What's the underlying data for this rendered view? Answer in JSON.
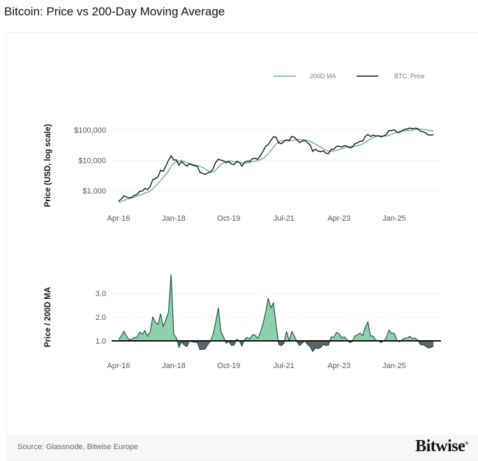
{
  "title": "Bitcoin: Price vs 200-Day Moving Average",
  "footer": {
    "source": "Source: Glassnode, Bitwise Europe",
    "logo": "Bitwise"
  },
  "colors": {
    "ma": "#6fb79a",
    "price": "#111111",
    "fill_above": "#8fd0ac",
    "fill_below": "#5f6468",
    "ratio_line": "#0f4a44"
  },
  "chart_data": [
    {
      "type": "line",
      "ylabel": "Price (USD, log scale)",
      "yscale": "log",
      "yticks": [
        1000,
        10000,
        100000
      ],
      "ytick_labels": [
        "$1,000",
        "$10,000",
        "$100,000"
      ],
      "xtick_labels": [
        "Apr-16",
        "Jan-18",
        "Oct-19",
        "Jul-21",
        "Apr-23",
        "Jan-25"
      ],
      "legend": {
        "placement": "top-right",
        "entries": [
          "200D MA",
          "BTC: Price"
        ]
      },
      "grid": "horizontal",
      "x": [
        "2016-04",
        "2016-05",
        "2016-06",
        "2016-07",
        "2016-08",
        "2016-09",
        "2016-10",
        "2016-11",
        "2016-12",
        "2017-01",
        "2017-02",
        "2017-03",
        "2017-04",
        "2017-05",
        "2017-06",
        "2017-07",
        "2017-08",
        "2017-09",
        "2017-10",
        "2017-11",
        "2017-12",
        "2018-01",
        "2018-02",
        "2018-03",
        "2018-04",
        "2018-05",
        "2018-06",
        "2018-07",
        "2018-08",
        "2018-09",
        "2018-10",
        "2018-11",
        "2018-12",
        "2019-01",
        "2019-02",
        "2019-03",
        "2019-04",
        "2019-05",
        "2019-06",
        "2019-07",
        "2019-08",
        "2019-09",
        "2019-10",
        "2019-11",
        "2019-12",
        "2020-01",
        "2020-02",
        "2020-03",
        "2020-04",
        "2020-05",
        "2020-06",
        "2020-07",
        "2020-08",
        "2020-09",
        "2020-10",
        "2020-11",
        "2020-12",
        "2021-01",
        "2021-02",
        "2021-03",
        "2021-04",
        "2021-05",
        "2021-06",
        "2021-07",
        "2021-08",
        "2021-09",
        "2021-10",
        "2021-11",
        "2021-12",
        "2022-01",
        "2022-02",
        "2022-03",
        "2022-04",
        "2022-05",
        "2022-06",
        "2022-07",
        "2022-08",
        "2022-09",
        "2022-10",
        "2022-11",
        "2022-12",
        "2023-01",
        "2023-02",
        "2023-03",
        "2023-04",
        "2023-05",
        "2023-06",
        "2023-07",
        "2023-08",
        "2023-09",
        "2023-10",
        "2023-11",
        "2023-12",
        "2024-01",
        "2024-02",
        "2024-03",
        "2024-04",
        "2024-05",
        "2024-06",
        "2024-07",
        "2024-08",
        "2024-09",
        "2024-10",
        "2024-11",
        "2024-12",
        "2025-01",
        "2025-02",
        "2025-03",
        "2025-04",
        "2025-05",
        "2025-06",
        "2025-07",
        "2025-08",
        "2025-09",
        "2025-10",
        "2025-11",
        "2025-12",
        "2026-01",
        "2026-02",
        "2026-03",
        "2026-04"
      ],
      "series": [
        {
          "name": "BTC: Price",
          "values": [
            450,
            530,
            670,
            625,
            575,
            610,
            700,
            740,
            960,
            970,
            1190,
            1080,
            1350,
            2300,
            2500,
            2870,
            4700,
            4340,
            6450,
            10000,
            14000,
            10200,
            10300,
            6900,
            9200,
            7500,
            6400,
            7700,
            7000,
            6600,
            6300,
            4000,
            3700,
            3450,
            3850,
            4100,
            5300,
            8600,
            10800,
            10100,
            9600,
            8300,
            9200,
            7550,
            7200,
            9350,
            8600,
            6400,
            8600,
            9450,
            9140,
            11300,
            11650,
            10780,
            13800,
            19700,
            29000,
            33100,
            45200,
            58800,
            57700,
            37300,
            35000,
            41500,
            47100,
            43800,
            61300,
            57000,
            46300,
            38500,
            43200,
            45500,
            37700,
            31800,
            19800,
            23300,
            20000,
            19400,
            20500,
            17200,
            16500,
            23100,
            23100,
            28500,
            29300,
            27200,
            30500,
            29200,
            26000,
            27000,
            34700,
            37700,
            42300,
            42600,
            61200,
            71300,
            60600,
            67500,
            62700,
            64600,
            59000,
            63300,
            70200,
            96400,
            93400,
            102400,
            84400,
            82500,
            94200,
            104600,
            107100,
            115700,
            108200,
            114000,
            109500,
            90000,
            87000,
            80000,
            68000,
            68000,
            70000
          ]
        },
        {
          "name": "200D MA",
          "values": [
            420,
            440,
            480,
            520,
            550,
            575,
            610,
            650,
            700,
            760,
            830,
            900,
            980,
            1150,
            1400,
            1700,
            2200,
            2700,
            3400,
            4500,
            6300,
            8000,
            9100,
            9500,
            9600,
            9200,
            8400,
            7800,
            7300,
            7000,
            6800,
            6300,
            5800,
            5200,
            4600,
            4200,
            4100,
            4800,
            6000,
            7200,
            8300,
            9200,
            9500,
            9300,
            8800,
            8700,
            8600,
            8200,
            8100,
            8200,
            8500,
            9000,
            9400,
            9700,
            10300,
            11500,
            13500,
            16500,
            21000,
            27000,
            34000,
            40000,
            44000,
            46000,
            46000,
            44000,
            44000,
            46000,
            48000,
            49000,
            48000,
            46000,
            45000,
            42000,
            38000,
            34000,
            30000,
            27000,
            24000,
            21500,
            20000,
            19800,
            20000,
            21000,
            22500,
            24000,
            26000,
            27500,
            28000,
            28200,
            28800,
            30000,
            32000,
            35000,
            39000,
            45000,
            50000,
            56000,
            61000,
            64000,
            64000,
            63000,
            63000,
            67000,
            71000,
            77000,
            82000,
            86000,
            90000,
            94000,
            96000,
            97000,
            99000,
            102000,
            106000,
            107000,
            105000,
            102000,
            98000,
            94000,
            90000
          ]
        }
      ]
    },
    {
      "type": "area",
      "ylabel": "Price / 200D MA",
      "yticks": [
        1.0,
        2.0,
        3.0
      ],
      "ytick_labels": [
        "1.0",
        "2.0",
        "3.0"
      ],
      "xtick_labels": [
        "Apr-16",
        "Jan-18",
        "Oct-19",
        "Jul-21",
        "Apr-23",
        "Jan-25"
      ],
      "baseline": 1.0,
      "grid": "horizontal",
      "series": [
        {
          "values": [
            1.07,
            1.2,
            1.4,
            1.2,
            1.05,
            1.06,
            1.15,
            1.14,
            1.37,
            1.28,
            1.43,
            1.2,
            1.38,
            2.0,
            1.79,
            1.69,
            2.14,
            1.6,
            1.9,
            2.2,
            3.8,
            1.28,
            1.13,
            0.73,
            0.96,
            0.82,
            0.76,
            0.99,
            0.96,
            0.94,
            0.93,
            0.63,
            0.64,
            0.66,
            0.84,
            0.98,
            1.29,
            1.79,
            2.4,
            1.4,
            1.16,
            0.9,
            0.97,
            0.81,
            0.82,
            1.07,
            1.0,
            0.78,
            1.06,
            1.15,
            1.08,
            1.26,
            1.24,
            1.11,
            1.34,
            1.71,
            2.2,
            2.8,
            2.4,
            2.6,
            1.7,
            0.85,
            0.8,
            0.9,
            1.4,
            1.0,
            1.4,
            1.2,
            0.95,
            0.8,
            0.9,
            1.0,
            0.85,
            0.75,
            0.55,
            0.7,
            0.67,
            0.72,
            0.85,
            0.8,
            0.82,
            1.17,
            1.15,
            1.35,
            1.3,
            1.13,
            1.17,
            1.06,
            0.93,
            0.96,
            1.2,
            1.26,
            1.32,
            1.22,
            1.57,
            1.8,
            1.21,
            1.2,
            1.03,
            1.01,
            0.92,
            1.0,
            1.11,
            1.45,
            1.31,
            1.33,
            1.03,
            0.96,
            1.05,
            1.11,
            1.12,
            1.19,
            1.09,
            1.12,
            1.03,
            0.84,
            0.83,
            0.78,
            0.7,
            0.72,
            0.78
          ]
        }
      ]
    }
  ]
}
